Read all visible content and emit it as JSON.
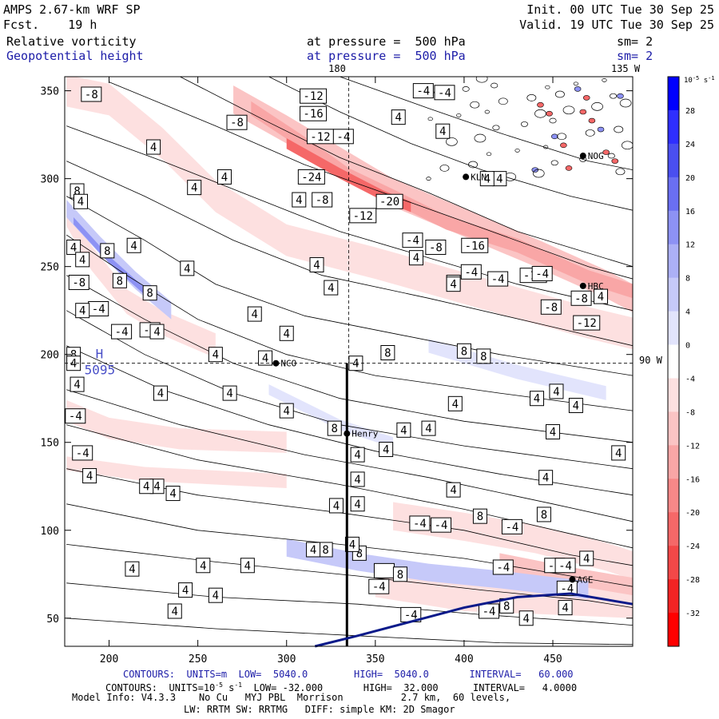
{
  "header": {
    "model": "AMPS 2.67-km WRF SP",
    "fcst_label": "Fcst.",
    "fcst_value": "19 h",
    "field1": "Relative vorticity",
    "field2": "Geopotential height",
    "pressure1": "at pressure =  500 hPa",
    "pressure2": "at pressure =  500 hPa",
    "init": "Init. 00 UTC Tue 30 Sep 25",
    "valid": "Valid. 19 UTC Tue 30 Sep 25",
    "sm1": "sm= 2",
    "sm2": "sm= 2",
    "lon_180": "180",
    "lon_135w": "135 W",
    "lat_90w": "90 W"
  },
  "footer": {
    "line1": "CONTOURS:  UNITS=m  LOW=  5040.0        HIGH=  5040.0       INTERVAL=   60.000",
    "line2_prefix": "CONTOURS:  UNITS=10",
    "line2_exp": "-5",
    "line2_unit": " s",
    "line2_exp2": "-1",
    "line2_rest": "  LOW= -32.000       HIGH=  32.000      INTERVAL=   4.0000",
    "line3": "Model Info: V4.3.3    No Cu   MYJ PBL  Morrison          2.7 km,  60 levels,",
    "line4": "LW: RRTM SW: RRTMG   DIFF: simple KM: 2D Smagor"
  },
  "chart_data": {
    "type": "heatmap",
    "title": "Relative vorticity and Geopotential height at 500 hPa",
    "x_ticks": [
      200,
      250,
      300,
      350,
      400,
      450
    ],
    "y_ticks": [
      50,
      100,
      150,
      200,
      250,
      300,
      350
    ],
    "xlim": [
      175,
      495
    ],
    "ylim": [
      34,
      358
    ],
    "colorbar": {
      "unit_base": "10",
      "unit_exp": "-5",
      "unit_s": " s",
      "unit_exp2": "-1",
      "levels": [
        32,
        28,
        24,
        20,
        16,
        12,
        8,
        4,
        0,
        -4,
        -8,
        -12,
        -16,
        -20,
        -24,
        -28,
        -32
      ],
      "colors": [
        "#0000ff",
        "#2f2fff",
        "#4a4ff0",
        "#6a6ff2",
        "#8d92f4",
        "#acb0f6",
        "#c6c9f9",
        "#e2e4fc",
        "#ffffff",
        "#fde0e0",
        "#fbc4c4",
        "#f9a6a6",
        "#f78888",
        "#f56868",
        "#f34848",
        "#f22424",
        "#ff0000"
      ]
    },
    "stations": [
      {
        "name": "KLN",
        "x": 401,
        "y": 301
      },
      {
        "name": "NCO",
        "x": 294,
        "y": 195
      },
      {
        "name": "HBC",
        "x": 467,
        "y": 239
      },
      {
        "name": "Henry",
        "x": 334,
        "y": 155
      },
      {
        "name": "AGE",
        "x": 461,
        "y": 72
      },
      {
        "name": "NOG",
        "x": 467,
        "y": 313
      }
    ],
    "high": {
      "label": "H",
      "value": "5095",
      "x": 196,
      "y": 197
    },
    "vorticity_labels": [
      {
        "v": "-8",
        "x": 190,
        "y": 348
      },
      {
        "v": "-12",
        "x": 315,
        "y": 347
      },
      {
        "v": "-16",
        "x": 315,
        "y": 337
      },
      {
        "v": "-8",
        "x": 272,
        "y": 332
      },
      {
        "v": "-12",
        "x": 319,
        "y": 324
      },
      {
        "v": "-4",
        "x": 332,
        "y": 324
      },
      {
        "v": "-24",
        "x": 314,
        "y": 301
      },
      {
        "v": "-8",
        "x": 320,
        "y": 288
      },
      {
        "v": "-20",
        "x": 358,
        "y": 287
      },
      {
        "v": "-12",
        "x": 343,
        "y": 279
      },
      {
        "v": "-4",
        "x": 371,
        "y": 265
      },
      {
        "v": "-8",
        "x": 384,
        "y": 261
      },
      {
        "v": "-16",
        "x": 406,
        "y": 262
      },
      {
        "v": "-4",
        "x": 404,
        "y": 247
      },
      {
        "v": "-4",
        "x": 419,
        "y": 243
      },
      {
        "v": "-16",
        "x": 439,
        "y": 245
      },
      {
        "v": "-4",
        "x": 444,
        "y": 246
      },
      {
        "v": "-8",
        "x": 466,
        "y": 232
      },
      {
        "v": "-8",
        "x": 449,
        "y": 227
      },
      {
        "v": "-12",
        "x": 469,
        "y": 218
      },
      {
        "v": "-8",
        "x": 183,
        "y": 241
      },
      {
        "v": "-4",
        "x": 194,
        "y": 226
      },
      {
        "v": "-4",
        "x": 207,
        "y": 213
      },
      {
        "v": "-4",
        "x": 223,
        "y": 214
      },
      {
        "v": "-4",
        "x": 181,
        "y": 165
      },
      {
        "v": "-4",
        "x": 185,
        "y": 144
      },
      {
        "v": "-4",
        "x": 377,
        "y": 350
      },
      {
        "v": "-4",
        "x": 389,
        "y": 349
      },
      {
        "v": "-4",
        "x": 375,
        "y": 104
      },
      {
        "v": "-4",
        "x": 387,
        "y": 103
      },
      {
        "v": "-4",
        "x": 427,
        "y": 102
      },
      {
        "v": "-4",
        "x": 422,
        "y": 79
      },
      {
        "v": "-4",
        "x": 451,
        "y": 80
      },
      {
        "v": "-4",
        "x": 458,
        "y": 67
      },
      {
        "v": "-4",
        "x": 352,
        "y": 68
      },
      {
        "v": "-4",
        "x": 370,
        "y": 52
      },
      {
        "v": "-4",
        "x": 414,
        "y": 54
      },
      {
        "v": "-4",
        "x": 457,
        "y": 80
      }
    ],
    "positive_labels": [
      {
        "v": "8",
        "x": 182,
        "y": 293
      },
      {
        "v": "8",
        "x": 199,
        "y": 259
      },
      {
        "v": "8",
        "x": 206,
        "y": 242
      },
      {
        "v": "8",
        "x": 223,
        "y": 235
      },
      {
        "v": "8",
        "x": 180,
        "y": 200
      },
      {
        "v": "8",
        "x": 357,
        "y": 201
      },
      {
        "v": "8",
        "x": 400,
        "y": 202
      },
      {
        "v": "8",
        "x": 411,
        "y": 199
      },
      {
        "v": "8",
        "x": 327,
        "y": 158
      },
      {
        "v": "8",
        "x": 409,
        "y": 108
      },
      {
        "v": "8",
        "x": 445,
        "y": 109
      },
      {
        "v": "8",
        "x": 322,
        "y": 89
      },
      {
        "v": "8",
        "x": 341,
        "y": 87
      },
      {
        "v": "12",
        "x": 355,
        "y": 77
      },
      {
        "v": "8",
        "x": 364,
        "y": 75
      },
      {
        "v": "8",
        "x": 424,
        "y": 57
      },
      {
        "v": "4",
        "x": 184,
        "y": 287
      },
      {
        "v": "4",
        "x": 180,
        "y": 261
      },
      {
        "v": "4",
        "x": 185,
        "y": 254
      },
      {
        "v": "4",
        "x": 185,
        "y": 225
      },
      {
        "v": "4",
        "x": 180,
        "y": 195
      },
      {
        "v": "4",
        "x": 182,
        "y": 183
      },
      {
        "v": "4",
        "x": 214,
        "y": 262
      },
      {
        "v": "4",
        "x": 227,
        "y": 213
      },
      {
        "v": "4",
        "x": 260,
        "y": 200
      },
      {
        "v": "4",
        "x": 248,
        "y": 295
      },
      {
        "v": "4",
        "x": 265,
        "y": 301
      },
      {
        "v": "4",
        "x": 225,
        "y": 318
      },
      {
        "v": "4",
        "x": 244,
        "y": 249
      },
      {
        "v": "4",
        "x": 229,
        "y": 178
      },
      {
        "v": "4",
        "x": 268,
        "y": 178
      },
      {
        "v": "4",
        "x": 282,
        "y": 223
      },
      {
        "v": "4",
        "x": 288,
        "y": 198
      },
      {
        "v": "4",
        "x": 300,
        "y": 212
      },
      {
        "v": "4",
        "x": 317,
        "y": 251
      },
      {
        "v": "4",
        "x": 307,
        "y": 288
      },
      {
        "v": "4",
        "x": 325,
        "y": 238
      },
      {
        "v": "4",
        "x": 339,
        "y": 195
      },
      {
        "v": "4",
        "x": 300,
        "y": 168
      },
      {
        "v": "4",
        "x": 340,
        "y": 143
      },
      {
        "v": "4",
        "x": 340,
        "y": 129
      },
      {
        "v": "4",
        "x": 340,
        "y": 115
      },
      {
        "v": "4",
        "x": 328,
        "y": 114
      },
      {
        "v": "4",
        "x": 315,
        "y": 89
      },
      {
        "v": "4",
        "x": 337,
        "y": 92
      },
      {
        "v": "4",
        "x": 278,
        "y": 80
      },
      {
        "v": "4",
        "x": 253,
        "y": 80
      },
      {
        "v": "4",
        "x": 213,
        "y": 78
      },
      {
        "v": "4",
        "x": 260,
        "y": 63
      },
      {
        "v": "4",
        "x": 236,
        "y": 121
      },
      {
        "v": "4",
        "x": 243,
        "y": 66
      },
      {
        "v": "4",
        "x": 237,
        "y": 54
      },
      {
        "v": "4",
        "x": 170,
        "y": 137
      },
      {
        "v": "4",
        "x": 189,
        "y": 131
      },
      {
        "v": "4",
        "x": 227,
        "y": 125
      },
      {
        "v": "4",
        "x": 221,
        "y": 125
      },
      {
        "v": "4",
        "x": 356,
        "y": 146
      },
      {
        "v": "4",
        "x": 366,
        "y": 157
      },
      {
        "v": "4",
        "x": 380,
        "y": 158
      },
      {
        "v": "4",
        "x": 395,
        "y": 172
      },
      {
        "v": "4",
        "x": 394,
        "y": 123
      },
      {
        "v": "4",
        "x": 363,
        "y": 335
      },
      {
        "v": "4",
        "x": 373,
        "y": 255
      },
      {
        "v": "4",
        "x": 394,
        "y": 241
      },
      {
        "v": "4",
        "x": 441,
        "y": 175
      },
      {
        "v": "4",
        "x": 452,
        "y": 179
      },
      {
        "v": "4",
        "x": 463,
        "y": 171
      },
      {
        "v": "4",
        "x": 450,
        "y": 156
      },
      {
        "v": "4",
        "x": 446,
        "y": 130
      },
      {
        "v": "4",
        "x": 469,
        "y": 84
      },
      {
        "v": "4",
        "x": 487,
        "y": 144
      },
      {
        "v": "4",
        "x": 435,
        "y": 50
      },
      {
        "v": "4",
        "x": 457,
        "y": 56
      },
      {
        "v": "4",
        "x": 394,
        "y": 240
      },
      {
        "v": "4",
        "x": 420,
        "y": 300
      },
      {
        "v": "4",
        "x": 477,
        "y": 233
      },
      {
        "v": "4",
        "x": 388,
        "y": 327
      },
      {
        "v": "4",
        "x": 413,
        "y": 300
      }
    ]
  }
}
